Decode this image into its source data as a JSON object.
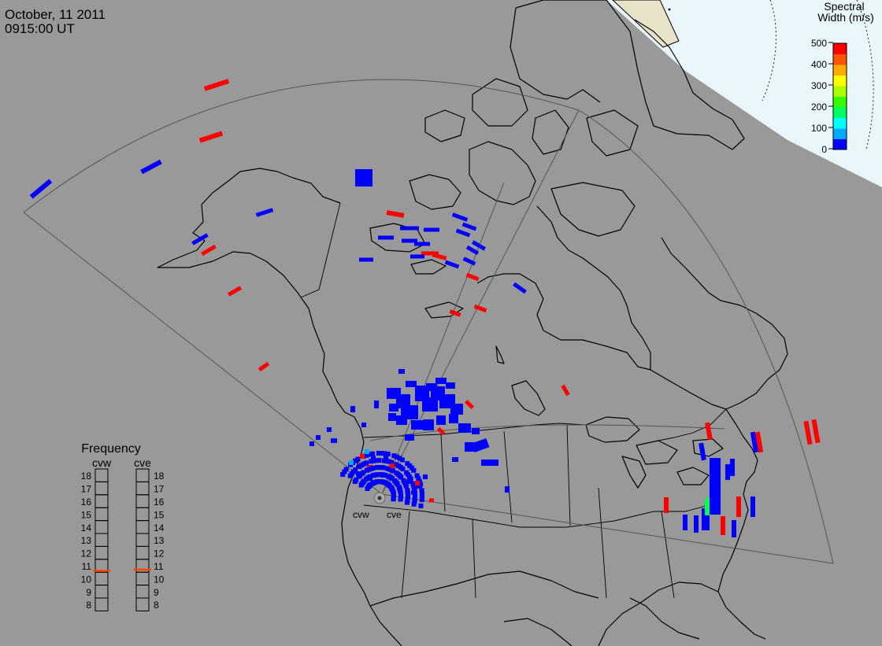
{
  "header": {
    "date": "October, 11 2011",
    "time": "0915:00 UT"
  },
  "colorbar": {
    "title_line1": "Spectral",
    "title_line2": "Width (m/s)",
    "ticks": [
      "500",
      "400",
      "300",
      "200",
      "100",
      "0"
    ],
    "colors": [
      "#0000ff",
      "#00aaff",
      "#00ffff",
      "#00ff66",
      "#33ff00",
      "#aaff00",
      "#ffff00",
      "#ffaa00",
      "#ff5500",
      "#ff0000"
    ]
  },
  "radars": {
    "west": "cvw",
    "east": "cve"
  },
  "frequency": {
    "title": "Frequency",
    "left_label": "cvw",
    "right_label": "cve",
    "scale": [
      "18",
      "17",
      "16",
      "15",
      "14",
      "13",
      "12",
      "11",
      "10",
      "9",
      "8"
    ],
    "cvw_value": 10.6,
    "cve_value": 10.7,
    "marker_color": "#ff4400"
  },
  "colors": {
    "background": "#999999",
    "low_width": "#0000ff",
    "high_width": "#ff0000",
    "mid_width": "#00ff44",
    "sky": "#e9f6fc"
  }
}
